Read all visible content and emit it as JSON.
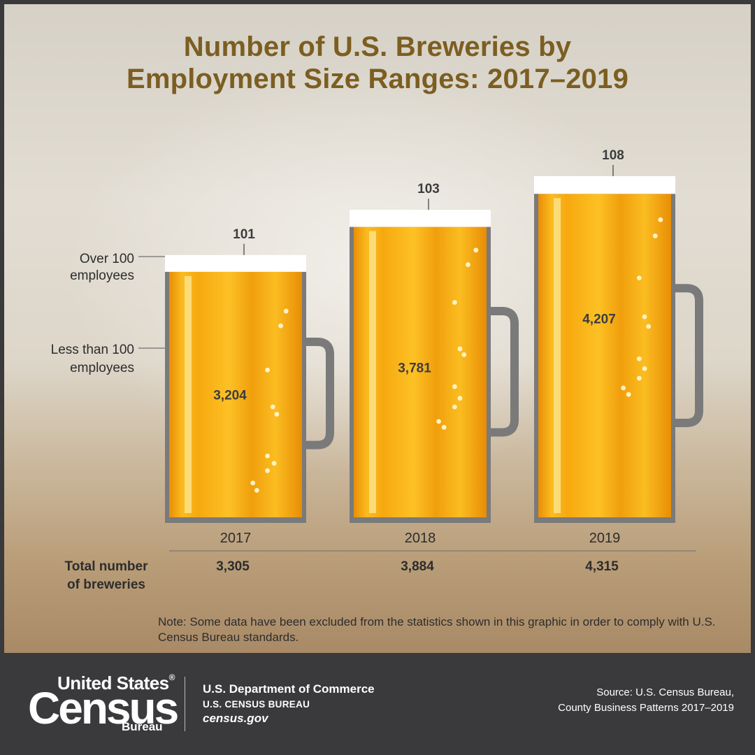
{
  "title_line1": "Number of U.S. Breweries by",
  "title_line2": "Employment Size Ranges: 2017–2019",
  "legend": {
    "over": [
      "Over 100",
      "employees"
    ],
    "less": [
      "Less than 100",
      "employees"
    ]
  },
  "total_label": [
    "Total number",
    "of breweries"
  ],
  "note": "Note: Some data have been excluded from the statistics shown in this graphic in order to comply with U.S. Census Bureau standards.",
  "footer": {
    "logo_us": "United States",
    "logo_reg": "®",
    "logo_census": "Census",
    "logo_bureau": "Bureau",
    "dept": "U.S. Department of Commerce",
    "bureau": "U.S. CENSUS BUREAU",
    "site": "census.gov",
    "source_line1": "Source: U.S. Census Bureau,",
    "source_line2": "County Business Patterns 2017–2019"
  },
  "colors": {
    "title": "#7c5e22",
    "beer": "#f3a711",
    "beer_light": "#fcc021",
    "foam": "#ffffff",
    "mug": "#7a7a7a",
    "footer_bg": "#3a3a3c"
  },
  "chart_data": {
    "type": "bar",
    "stacked": true,
    "categories": [
      "2017",
      "2018",
      "2019"
    ],
    "series": [
      {
        "name": "Less than 100 employees",
        "values": [
          3204,
          3781,
          4207
        ]
      },
      {
        "name": "Over 100 employees",
        "values": [
          101,
          103,
          108
        ]
      }
    ],
    "value_labels": {
      "less": [
        "3,204",
        "3,781",
        "4,207"
      ],
      "over": [
        "101",
        "103",
        "108"
      ]
    },
    "totals": [
      3305,
      3884,
      4315
    ],
    "total_labels": [
      "3,305",
      "3,884",
      "4,315"
    ]
  }
}
